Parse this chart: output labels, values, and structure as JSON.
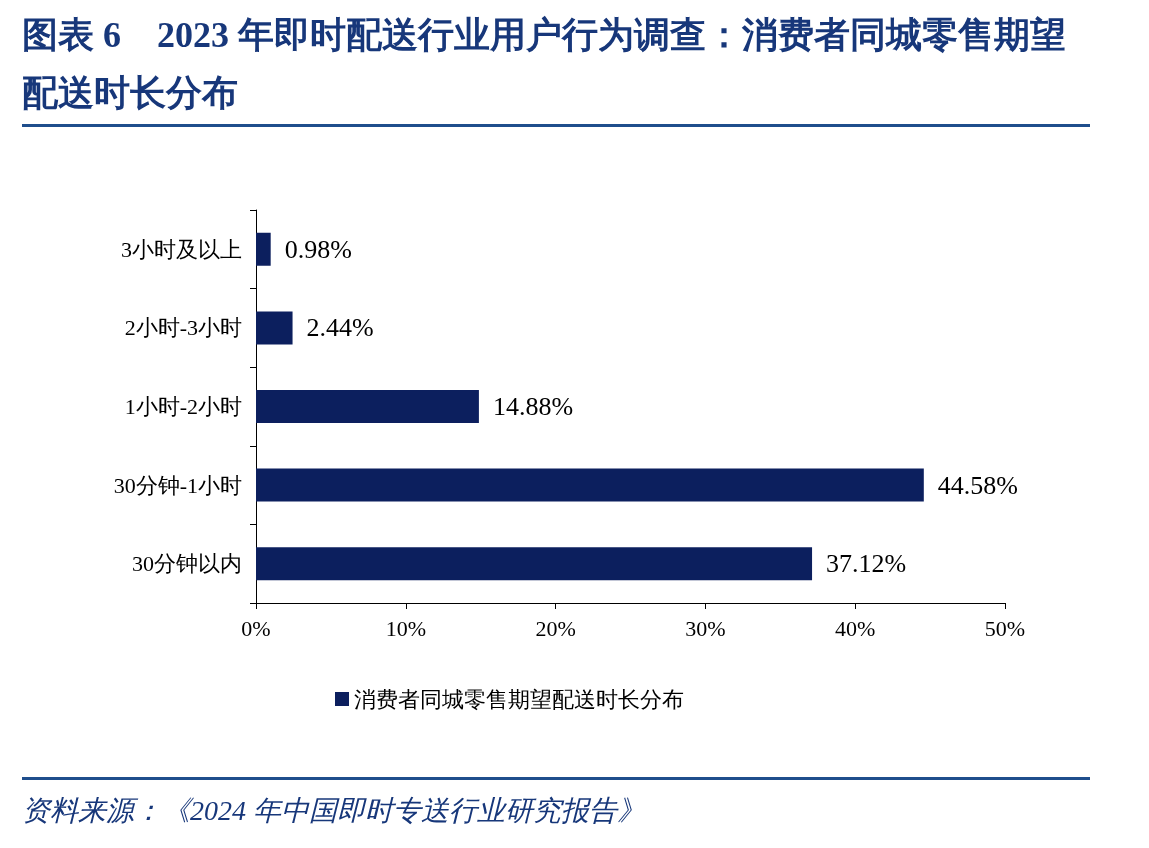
{
  "chart_data": {
    "type": "bar",
    "orientation": "horizontal",
    "title": "图表 6　2023 年即时配送行业用户行为调查：消费者同城零售期望配送时长分布",
    "categories": [
      "3小时及以上",
      "2小时-3小时",
      "1小时-2小时",
      "30分钟-1小时",
      "30分钟以内"
    ],
    "series": [
      {
        "name": "消费者同城零售期望配送时长分布",
        "color": "#0c1f5e",
        "values": [
          0.98,
          2.44,
          14.88,
          44.58,
          37.12
        ],
        "value_labels": [
          "0.98%",
          "2.44%",
          "14.88%",
          "44.58%",
          "37.12%"
        ]
      }
    ],
    "xlim": [
      0,
      50
    ],
    "xticks": [
      {
        "value": 0,
        "label": "0%"
      },
      {
        "value": 10,
        "label": "10%"
      },
      {
        "value": 20,
        "label": "20%"
      },
      {
        "value": 30,
        "label": "30%"
      },
      {
        "value": 40,
        "label": "40%"
      },
      {
        "value": 50,
        "label": "50%"
      }
    ],
    "grid": false,
    "legend": "bottom",
    "annotations": [
      "资料来源：《2024 年中国即时专送行业研究报告》"
    ]
  }
}
